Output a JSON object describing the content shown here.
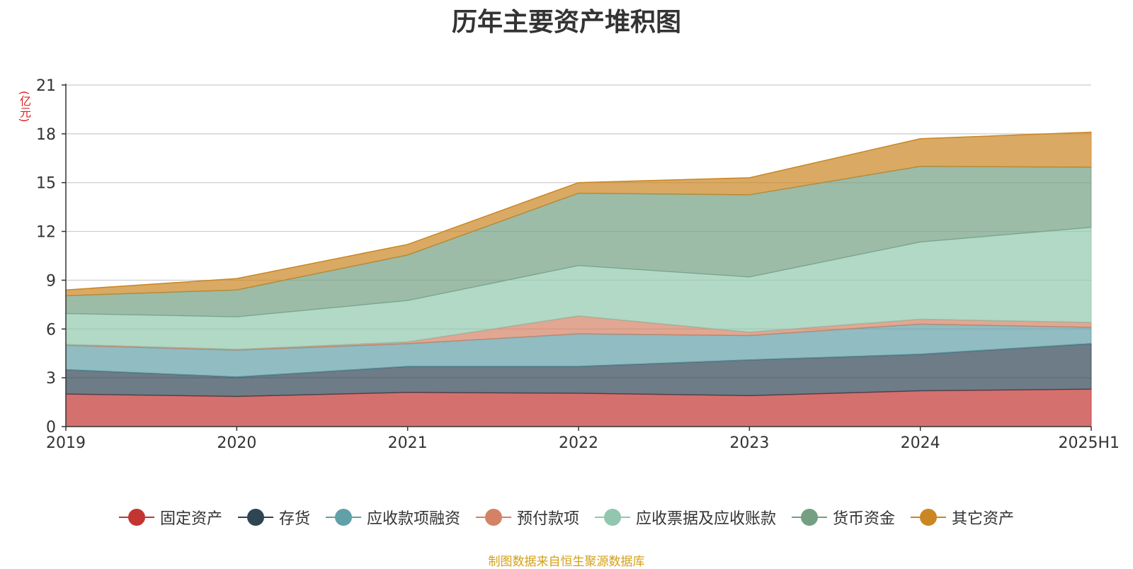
{
  "chart_data": {
    "type": "area",
    "stacked": true,
    "title": "历年主要资产堆积图",
    "ylabel": "(亿元)",
    "xlabel": "",
    "categories": [
      "2019",
      "2020",
      "2021",
      "2022",
      "2023",
      "2024",
      "2025H1"
    ],
    "ylim": [
      0,
      21
    ],
    "yticks": [
      "0",
      "3",
      "6",
      "9",
      "12",
      "15",
      "18",
      "21"
    ],
    "grid": true,
    "legend_position": "bottom",
    "series": [
      {
        "name": "固定资产",
        "color": "#c23531",
        "values": [
          2.0,
          1.85,
          2.1,
          2.05,
          1.9,
          2.2,
          2.3
        ]
      },
      {
        "name": "存货",
        "color": "#2f4554",
        "values": [
          1.5,
          1.2,
          1.6,
          1.65,
          2.2,
          2.25,
          2.8
        ]
      },
      {
        "name": "应收款项融资",
        "color": "#61a0a8",
        "values": [
          1.5,
          1.65,
          1.4,
          2.0,
          1.5,
          1.85,
          1.0
        ]
      },
      {
        "name": "预付款项",
        "color": "#d48265",
        "values": [
          0.05,
          0.05,
          0.1,
          1.1,
          0.2,
          0.3,
          0.3
        ]
      },
      {
        "name": "应收票据及应收账款",
        "color": "#91c7ae",
        "values": [
          1.9,
          2.0,
          2.55,
          3.1,
          3.4,
          4.75,
          5.85
        ]
      },
      {
        "name": "货币资金",
        "color": "#749f83",
        "values": [
          1.1,
          1.65,
          2.8,
          4.45,
          5.05,
          4.65,
          3.7
        ]
      },
      {
        "name": "其它资产",
        "color": "#ca8622",
        "values": [
          0.35,
          0.7,
          0.65,
          0.65,
          1.05,
          1.7,
          2.15
        ]
      }
    ]
  },
  "source_note": "制图数据来自恒生聚源数据库"
}
